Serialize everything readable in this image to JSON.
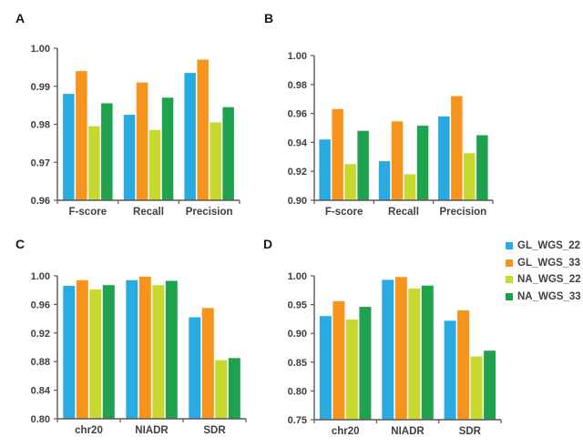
{
  "figure_title": "",
  "panel_labels": [
    "A",
    "B",
    "C",
    "D"
  ],
  "colors": {
    "background": "#ffffff",
    "axis_line": "#595959",
    "tick_text": "#404040",
    "category_text": "#404040",
    "panel_letter": "#1a1a1a"
  },
  "series_colors": {
    "GL_WGS_22": "#29ABE2",
    "GL_WGS_33": "#F7941E",
    "NA_WGS_22": "#C7D82F",
    "NA_WGS_33": "#1EA24D"
  },
  "legend": {
    "position": "right-middle",
    "items": [
      {
        "label": "GL_WGS_22",
        "color": "#29ABE2"
      },
      {
        "label": "GL_WGS_33",
        "color": "#F7941E"
      },
      {
        "label": "NA_WGS_22",
        "color": "#C7D82F"
      },
      {
        "label": "NA_WGS_33",
        "color": "#1EA24D"
      }
    ]
  },
  "chart_data": [
    {
      "panel": "A",
      "type": "bar",
      "categories": [
        "F-score",
        "Recall",
        "Precision"
      ],
      "ylim": [
        0.96,
        1.0
      ],
      "ytick_step": 0.01,
      "grid": false,
      "legend_position": "none",
      "series": [
        {
          "name": "GL_WGS_22",
          "values": [
            0.988,
            0.9825,
            0.9935
          ]
        },
        {
          "name": "GL_WGS_33",
          "values": [
            0.994,
            0.991,
            0.997
          ]
        },
        {
          "name": "NA_WGS_22",
          "values": [
            0.9795,
            0.9785,
            0.9805
          ]
        },
        {
          "name": "NA_WGS_33",
          "values": [
            0.9855,
            0.987,
            0.9845
          ]
        }
      ]
    },
    {
      "panel": "B",
      "type": "bar",
      "categories": [
        "F-score",
        "Recall",
        "Precision"
      ],
      "ylim": [
        0.9,
        1.0
      ],
      "ytick_step": 0.02,
      "grid": false,
      "legend_position": "none",
      "series": [
        {
          "name": "GL_WGS_22",
          "values": [
            0.942,
            0.927,
            0.958
          ]
        },
        {
          "name": "GL_WGS_33",
          "values": [
            0.963,
            0.9545,
            0.972
          ]
        },
        {
          "name": "NA_WGS_22",
          "values": [
            0.925,
            0.918,
            0.9325
          ]
        },
        {
          "name": "NA_WGS_33",
          "values": [
            0.948,
            0.9515,
            0.945
          ]
        }
      ]
    },
    {
      "panel": "C",
      "type": "bar",
      "categories": [
        "chr20",
        "NIADR",
        "SDR"
      ],
      "ylim": [
        0.8,
        1.0
      ],
      "ytick_step": 0.04,
      "grid": false,
      "legend_position": "none",
      "series": [
        {
          "name": "GL_WGS_22",
          "values": [
            0.986,
            0.994,
            0.942
          ]
        },
        {
          "name": "GL_WGS_33",
          "values": [
            0.994,
            0.999,
            0.955
          ]
        },
        {
          "name": "NA_WGS_22",
          "values": [
            0.981,
            0.987,
            0.882
          ]
        },
        {
          "name": "NA_WGS_33",
          "values": [
            0.987,
            0.993,
            0.885
          ]
        }
      ]
    },
    {
      "panel": "D",
      "type": "bar",
      "categories": [
        "chr20",
        "NIADR",
        "SDR"
      ],
      "ylim": [
        0.75,
        1.0
      ],
      "ytick_step": 0.05,
      "grid": false,
      "legend_position": "none",
      "series": [
        {
          "name": "GL_WGS_22",
          "values": [
            0.93,
            0.993,
            0.922
          ]
        },
        {
          "name": "GL_WGS_33",
          "values": [
            0.956,
            0.998,
            0.94
          ]
        },
        {
          "name": "NA_WGS_22",
          "values": [
            0.924,
            0.978,
            0.86
          ]
        },
        {
          "name": "NA_WGS_33",
          "values": [
            0.946,
            0.983,
            0.87
          ]
        }
      ]
    }
  ]
}
